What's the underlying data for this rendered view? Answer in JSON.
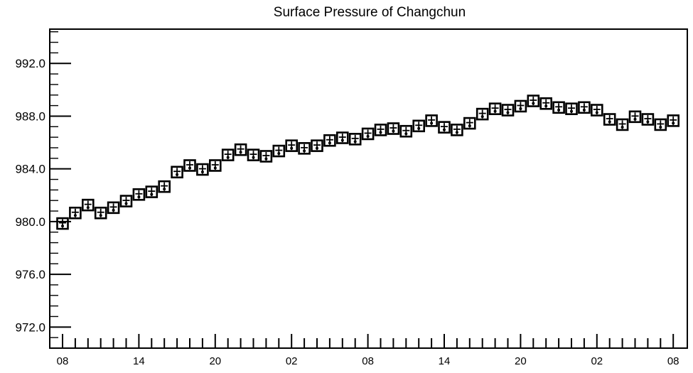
{
  "chart_data": {
    "type": "scatter",
    "title": "Surface Pressure of Changchun",
    "xlabel": "",
    "ylabel": "",
    "ylim": [
      970.4,
      994.6
    ],
    "y_ticks": [
      972.0,
      976.0,
      980.0,
      984.0,
      988.0,
      992.0
    ],
    "y_tick_labels": [
      "972.0",
      "976.0",
      "980.0",
      "984.0",
      "988.0",
      "992.0"
    ],
    "x_tick_labels": [
      "08",
      "14",
      "20",
      "02",
      "08",
      "14",
      "20",
      "02",
      "08"
    ],
    "x_tick_every": 6,
    "grid": false,
    "legend": "none",
    "marker": "boxed-station",
    "color": "#000000",
    "series": [
      {
        "values": [
          979.8,
          980.6,
          981.2,
          980.6,
          981.0,
          981.5,
          982.0,
          982.2,
          982.6,
          983.7,
          984.2,
          983.9,
          984.2,
          985.0,
          985.4,
          985.0,
          984.9,
          985.3,
          985.7,
          985.5,
          985.7,
          986.1,
          986.3,
          986.2,
          986.6,
          986.9,
          987.0,
          986.8,
          987.2,
          987.6,
          987.1,
          986.9,
          987.4,
          988.1,
          988.5,
          988.4,
          988.7,
          989.1,
          988.9,
          988.6,
          988.5,
          988.6,
          988.4,
          987.7,
          987.3,
          987.9,
          987.7,
          987.3,
          987.6
        ]
      }
    ]
  }
}
